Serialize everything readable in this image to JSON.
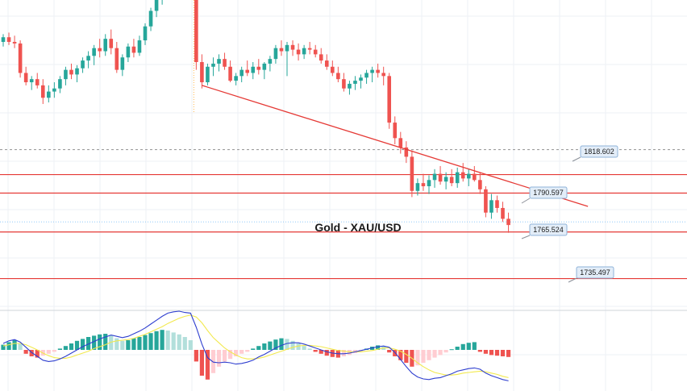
{
  "chart_data": {
    "type": "candlestick",
    "title": "Gold - XAU/USD",
    "price_range": [
      1715,
      1915
    ],
    "colors": {
      "up": "#26a69a",
      "down": "#ef5350",
      "level_line": "#e53935",
      "trendline": "#e53935",
      "dotted_level": "#9e9e9e",
      "grid": "#eef1f5",
      "macd_line": "#2f3fcf",
      "signal_line": "#f2e94e",
      "hist_pos_strong": "#26a69a",
      "hist_pos_weak": "#b2dfdb",
      "hist_neg_strong": "#ef5350",
      "hist_neg_weak": "#ffcdd2"
    },
    "level_labels": [
      "1818.602",
      "1790.597",
      "1765.524",
      "1735.497"
    ],
    "levels": [
      {
        "price": 1818.602,
        "style": "dashed",
        "label": "1818.602"
      },
      {
        "price": 1802.5,
        "style": "solid",
        "label": ""
      },
      {
        "price": 1790.597,
        "style": "solid",
        "label": "1790.597"
      },
      {
        "price": 1765.524,
        "style": "solid",
        "label": "1765.524"
      },
      {
        "price": 1735.497,
        "style": "solid",
        "label": "1735.497"
      }
    ],
    "trendline": {
      "start": {
        "bar": 35,
        "price": 1860
      },
      "end": {
        "bar": 103,
        "price": 1782
      }
    },
    "candles": [
      [
        1888,
        1893,
        1885,
        1891
      ],
      [
        1891,
        1894,
        1886,
        1888
      ],
      [
        1888,
        1892,
        1884,
        1887
      ],
      [
        1887,
        1889,
        1865,
        1868
      ],
      [
        1868,
        1872,
        1860,
        1862
      ],
      [
        1862,
        1866,
        1857,
        1864
      ],
      [
        1864,
        1868,
        1858,
        1860
      ],
      [
        1860,
        1864,
        1848,
        1852
      ],
      [
        1852,
        1860,
        1849,
        1856
      ],
      [
        1856,
        1862,
        1852,
        1858
      ],
      [
        1858,
        1866,
        1855,
        1864
      ],
      [
        1864,
        1872,
        1860,
        1870
      ],
      [
        1870,
        1874,
        1864,
        1867
      ],
      [
        1867,
        1873,
        1862,
        1871
      ],
      [
        1871,
        1878,
        1868,
        1876
      ],
      [
        1876,
        1882,
        1871,
        1879
      ],
      [
        1879,
        1886,
        1873,
        1884
      ],
      [
        1884,
        1890,
        1878,
        1882
      ],
      [
        1882,
        1893,
        1879,
        1890
      ],
      [
        1890,
        1896,
        1880,
        1884
      ],
      [
        1884,
        1888,
        1868,
        1870
      ],
      [
        1870,
        1880,
        1866,
        1878
      ],
      [
        1878,
        1887,
        1875,
        1885
      ],
      [
        1885,
        1890,
        1878,
        1881
      ],
      [
        1881,
        1892,
        1879,
        1889
      ],
      [
        1889,
        1900,
        1886,
        1898
      ],
      [
        1898,
        1910,
        1895,
        1908
      ],
      [
        1908,
        1920,
        1904,
        1916
      ],
      [
        1916,
        1925,
        1912,
        1922
      ],
      [
        1922,
        1930,
        1918,
        1926
      ],
      [
        1926,
        1934,
        1920,
        1930
      ],
      [
        1930,
        1938,
        1922,
        1928
      ],
      [
        1928,
        1936,
        1920,
        1932
      ],
      [
        1932,
        1940,
        1925,
        1934
      ],
      [
        1934,
        1938,
        1870,
        1875
      ],
      [
        1875,
        1880,
        1858,
        1862
      ],
      [
        1862,
        1874,
        1860,
        1872
      ],
      [
        1872,
        1878,
        1866,
        1874
      ],
      [
        1874,
        1880,
        1869,
        1877
      ],
      [
        1877,
        1881,
        1870,
        1872
      ],
      [
        1872,
        1876,
        1862,
        1863
      ],
      [
        1863,
        1868,
        1860,
        1866
      ],
      [
        1866,
        1872,
        1862,
        1870
      ],
      [
        1870,
        1876,
        1866,
        1868
      ],
      [
        1868,
        1875,
        1864,
        1872
      ],
      [
        1872,
        1877,
        1867,
        1870
      ],
      [
        1870,
        1875,
        1864,
        1874
      ],
      [
        1874,
        1879,
        1869,
        1877
      ],
      [
        1877,
        1886,
        1874,
        1884
      ],
      [
        1884,
        1889,
        1879,
        1882
      ],
      [
        1882,
        1888,
        1866,
        1886
      ],
      [
        1886,
        1889,
        1879,
        1883
      ],
      [
        1883,
        1887,
        1876,
        1880
      ],
      [
        1880,
        1886,
        1877,
        1884
      ],
      [
        1884,
        1888,
        1880,
        1883
      ],
      [
        1883,
        1886,
        1878,
        1880
      ],
      [
        1880,
        1884,
        1874,
        1876
      ],
      [
        1876,
        1880,
        1870,
        1872
      ],
      [
        1872,
        1876,
        1866,
        1868
      ],
      [
        1868,
        1872,
        1862,
        1864
      ],
      [
        1864,
        1868,
        1856,
        1858
      ],
      [
        1858,
        1863,
        1854,
        1861
      ],
      [
        1861,
        1866,
        1857,
        1863
      ],
      [
        1863,
        1867,
        1858,
        1865
      ],
      [
        1865,
        1870,
        1861,
        1868
      ],
      [
        1868,
        1872,
        1862,
        1870
      ],
      [
        1870,
        1874,
        1865,
        1868
      ],
      [
        1868,
        1872,
        1860,
        1866
      ],
      [
        1866,
        1868,
        1832,
        1836
      ],
      [
        1836,
        1840,
        1822,
        1826
      ],
      [
        1826,
        1830,
        1816,
        1820
      ],
      [
        1820,
        1824,
        1810,
        1814
      ],
      [
        1814,
        1818,
        1788,
        1792
      ],
      [
        1792,
        1800,
        1789,
        1797
      ],
      [
        1797,
        1803,
        1792,
        1795
      ],
      [
        1795,
        1802,
        1790,
        1799
      ],
      [
        1799,
        1806,
        1794,
        1803
      ],
      [
        1803,
        1808,
        1796,
        1798
      ],
      [
        1798,
        1804,
        1793,
        1801
      ],
      [
        1801,
        1806,
        1795,
        1797
      ],
      [
        1797,
        1807,
        1794,
        1804
      ],
      [
        1804,
        1810,
        1798,
        1800
      ],
      [
        1800,
        1806,
        1795,
        1803
      ],
      [
        1803,
        1808,
        1798,
        1799
      ],
      [
        1799,
        1804,
        1790,
        1793
      ],
      [
        1793,
        1795,
        1775,
        1778
      ],
      [
        1778,
        1790,
        1774,
        1786
      ],
      [
        1786,
        1789,
        1778,
        1781
      ],
      [
        1781,
        1785,
        1772,
        1774
      ],
      [
        1774,
        1778,
        1765,
        1770
      ]
    ],
    "macd_histogram": [
      0.8,
      1.2,
      1.5,
      1.0,
      -0.6,
      -1.0,
      -1.2,
      -0.9,
      -0.6,
      -0.3,
      0.2,
      0.6,
      1.0,
      1.4,
      1.7,
      2.0,
      2.2,
      2.4,
      2.5,
      2.3,
      1.8,
      1.4,
      1.5,
      1.8,
      2.0,
      2.3,
      2.6,
      2.9,
      3.1,
      3.0,
      2.7,
      2.4,
      2.0,
      1.5,
      -1.8,
      -4.0,
      -4.6,
      -3.6,
      -2.6,
      -1.8,
      -1.4,
      -1.0,
      -0.6,
      -0.3,
      0.2,
      0.6,
      1.0,
      1.3,
      1.6,
      1.8,
      1.7,
      1.4,
      1.0,
      0.6,
      0.2,
      -0.3,
      -0.6,
      -0.9,
      -1.1,
      -1.2,
      -1.0,
      -0.8,
      -0.5,
      -0.2,
      0.2,
      0.5,
      0.7,
      0.6,
      -0.4,
      -1.0,
      -1.6,
      -2.0,
      -2.6,
      -2.4,
      -2.0,
      -1.6,
      -1.2,
      -0.8,
      -0.4,
      0.1,
      0.5,
      0.9,
      1.1,
      1.2,
      -0.3,
      -0.6,
      -0.8,
      -0.9,
      -1.0,
      -1.1
    ],
    "macd_line": [
      1.0,
      1.4,
      1.6,
      1.2,
      0.4,
      -0.4,
      -1.0,
      -1.6,
      -1.8,
      -1.7,
      -1.4,
      -1.0,
      -0.5,
      0.0,
      0.5,
      0.9,
      1.3,
      1.7,
      2.0,
      2.3,
      2.1,
      1.9,
      2.1,
      2.5,
      2.9,
      3.4,
      4.0,
      4.6,
      5.2,
      5.7,
      5.9,
      6.0,
      5.8,
      5.7,
      3.5,
      0.9,
      -1.2,
      -1.9,
      -2.0,
      -1.9,
      -2.0,
      -2.2,
      -2.1,
      -1.9,
      -1.6,
      -1.1,
      -0.7,
      -0.2,
      0.3,
      0.7,
      1.0,
      1.1,
      1.1,
      0.9,
      0.6,
      0.3,
      0.0,
      -0.3,
      -0.5,
      -0.6,
      -0.6,
      -0.5,
      -0.3,
      -0.1,
      0.1,
      0.3,
      0.5,
      0.6,
      0.4,
      -0.4,
      -1.5,
      -2.6,
      -3.6,
      -4.2,
      -4.5,
      -4.6,
      -4.4,
      -4.3,
      -4.0,
      -3.7,
      -3.3,
      -3.1,
      -2.9,
      -2.8,
      -3.0,
      -3.6,
      -4.0,
      -4.3,
      -4.6,
      -4.8
    ],
    "signal_line": [
      0.6,
      0.8,
      1.0,
      1.0,
      0.8,
      0.4,
      0.0,
      -0.5,
      -0.9,
      -1.2,
      -1.3,
      -1.3,
      -1.1,
      -0.8,
      -0.5,
      -0.2,
      0.2,
      0.5,
      0.8,
      1.2,
      1.4,
      1.5,
      1.6,
      1.8,
      2.1,
      2.4,
      2.8,
      3.2,
      3.6,
      4.1,
      4.5,
      4.9,
      5.2,
      5.4,
      5.1,
      4.2,
      3.0,
      1.9,
      1.1,
      0.3,
      -0.3,
      -0.8,
      -1.2,
      -1.4,
      -1.4,
      -1.3,
      -1.1,
      -0.8,
      -0.5,
      -0.2,
      0.1,
      0.4,
      0.6,
      0.7,
      0.7,
      0.6,
      0.5,
      0.3,
      0.1,
      -0.1,
      -0.2,
      -0.3,
      -0.3,
      -0.3,
      -0.2,
      -0.1,
      0.1,
      0.3,
      0.3,
      0.1,
      -0.2,
      -0.7,
      -1.3,
      -2.0,
      -2.6,
      -3.1,
      -3.5,
      -3.7,
      -3.9,
      -3.9,
      -3.8,
      -3.6,
      -3.5,
      -3.4,
      -3.3,
      -3.4,
      -3.6,
      -3.8,
      -4.1,
      -4.3
    ]
  }
}
